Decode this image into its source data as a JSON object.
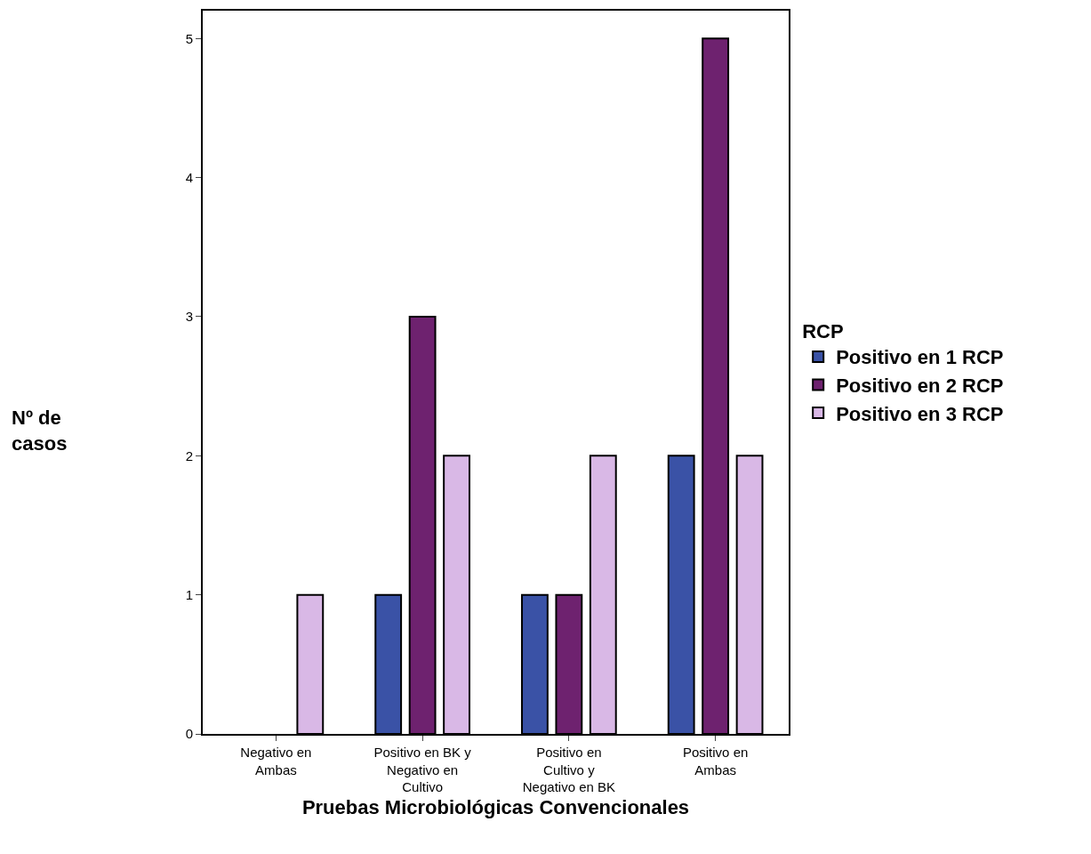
{
  "chart_data": {
    "type": "bar",
    "xlabel": "Pruebas Microbiológicas Convencionales",
    "annotations": [
      "Nº de\ncasos"
    ],
    "legend_title": "RCP",
    "categories": [
      "Negativo en\nAmbas",
      "Positivo en BK y\nNegativo en\nCultivo",
      "Positivo en\nCultivo y\nNegativo en BK",
      "Positivo en\nAmbas"
    ],
    "series": [
      {
        "name": "Positivo en 1 RCP",
        "color": "#3a52a6",
        "values": [
          null,
          1,
          1,
          2
        ]
      },
      {
        "name": "Positivo en 2 RCP",
        "color": "#6e226f",
        "values": [
          null,
          3,
          1,
          5
        ]
      },
      {
        "name": "Positivo en 3 RCP",
        "color": "#d9b8e6",
        "values": [
          1,
          2,
          2,
          2
        ]
      }
    ],
    "ylim": [
      0,
      5.2
    ],
    "yticks": [
      0,
      1,
      2,
      3,
      4,
      5
    ],
    "legend": "right"
  }
}
